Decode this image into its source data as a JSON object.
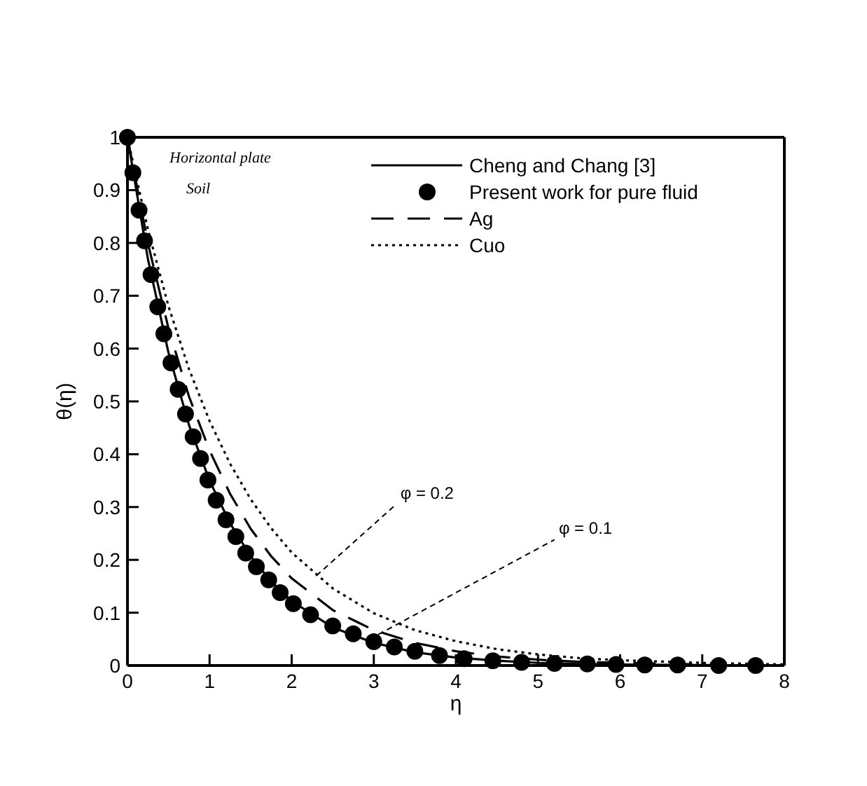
{
  "chart_data": {
    "type": "line",
    "xlabel": "η",
    "ylabel": "θ(η)",
    "xlim": [
      0,
      8
    ],
    "ylim": [
      0,
      1
    ],
    "xticks": [
      0,
      1,
      2,
      3,
      4,
      5,
      6,
      7,
      8
    ],
    "yticks": [
      0,
      0.1,
      0.2,
      0.3,
      0.4,
      0.5,
      0.6,
      0.7,
      0.8,
      0.9,
      1
    ],
    "grid": false,
    "legend": "top right",
    "series": [
      {
        "name": "Cheng and Chang [3]",
        "type": "line",
        "line_style": "solid",
        "color": "#000000",
        "x": [
          0,
          0.25,
          0.5,
          0.75,
          1,
          1.25,
          1.5,
          1.75,
          2,
          2.5,
          3,
          3.5,
          4,
          4.5,
          5,
          5.5,
          6,
          7,
          7.7
        ],
        "values": [
          1,
          0.769,
          0.592,
          0.455,
          0.35,
          0.269,
          0.207,
          0.159,
          0.122,
          0.072,
          0.043,
          0.025,
          0.015,
          0.009,
          0.005,
          0.003,
          0.002,
          0.001,
          0
        ]
      },
      {
        "name": "Present work for pure fluid",
        "type": "scatter",
        "marker": "circle",
        "color": "#000000",
        "x": [
          0,
          0.066,
          0.141,
          0.208,
          0.287,
          0.369,
          0.443,
          0.53,
          0.617,
          0.707,
          0.8,
          0.89,
          0.98,
          1.08,
          1.2,
          1.32,
          1.44,
          1.57,
          1.72,
          1.86,
          2.02,
          2.23,
          2.5,
          2.75,
          3,
          3.25,
          3.5,
          3.8,
          4.1,
          4.45,
          4.8,
          5.2,
          5.6,
          5.95,
          6.3,
          6.7,
          7.2,
          7.65
        ],
        "values": [
          1,
          0.933,
          0.862,
          0.804,
          0.74,
          0.679,
          0.628,
          0.573,
          0.523,
          0.476,
          0.433,
          0.392,
          0.351,
          0.313,
          0.276,
          0.244,
          0.213,
          0.187,
          0.162,
          0.138,
          0.117,
          0.096,
          0.075,
          0.06,
          0.045,
          0.035,
          0.027,
          0.019,
          0.013,
          0.009,
          0.006,
          0.004,
          0.003,
          0.002,
          0.001,
          0.001,
          0,
          0
        ]
      },
      {
        "name": "Ag",
        "type": "line",
        "line_style": "dashed",
        "color": "#000000",
        "x": [
          0,
          0.25,
          0.5,
          0.75,
          1,
          1.25,
          1.5,
          1.75,
          2,
          2.5,
          3,
          3.5,
          4,
          4.5,
          5,
          5.5,
          6,
          7
        ],
        "values": [
          1,
          0.799,
          0.638,
          0.509,
          0.407,
          0.325,
          0.259,
          0.207,
          0.165,
          0.105,
          0.067,
          0.043,
          0.027,
          0.017,
          0.011,
          0.007,
          0.005,
          0.002
        ]
      },
      {
        "name": "Cuo",
        "type": "line",
        "line_style": "dotted",
        "color": "#000000",
        "x": [
          0,
          0.25,
          0.5,
          0.75,
          1,
          1.25,
          1.5,
          1.75,
          2,
          2.5,
          3,
          3.5,
          4,
          4.5,
          5,
          5.5,
          6,
          7,
          8
        ],
        "values": [
          1,
          0.825,
          0.68,
          0.561,
          0.463,
          0.382,
          0.315,
          0.26,
          0.214,
          0.146,
          0.099,
          0.067,
          0.046,
          0.031,
          0.021,
          0.014,
          0.01,
          0.005,
          0.002
        ]
      }
    ],
    "annotations": [
      "Horizontal plate",
      "Soil",
      {
        "text": "φ = 0.2",
        "x": 2.3,
        "y": 0.17
      },
      {
        "text": "φ = 0.1",
        "x": 2.95,
        "y": 0.05
      }
    ]
  }
}
